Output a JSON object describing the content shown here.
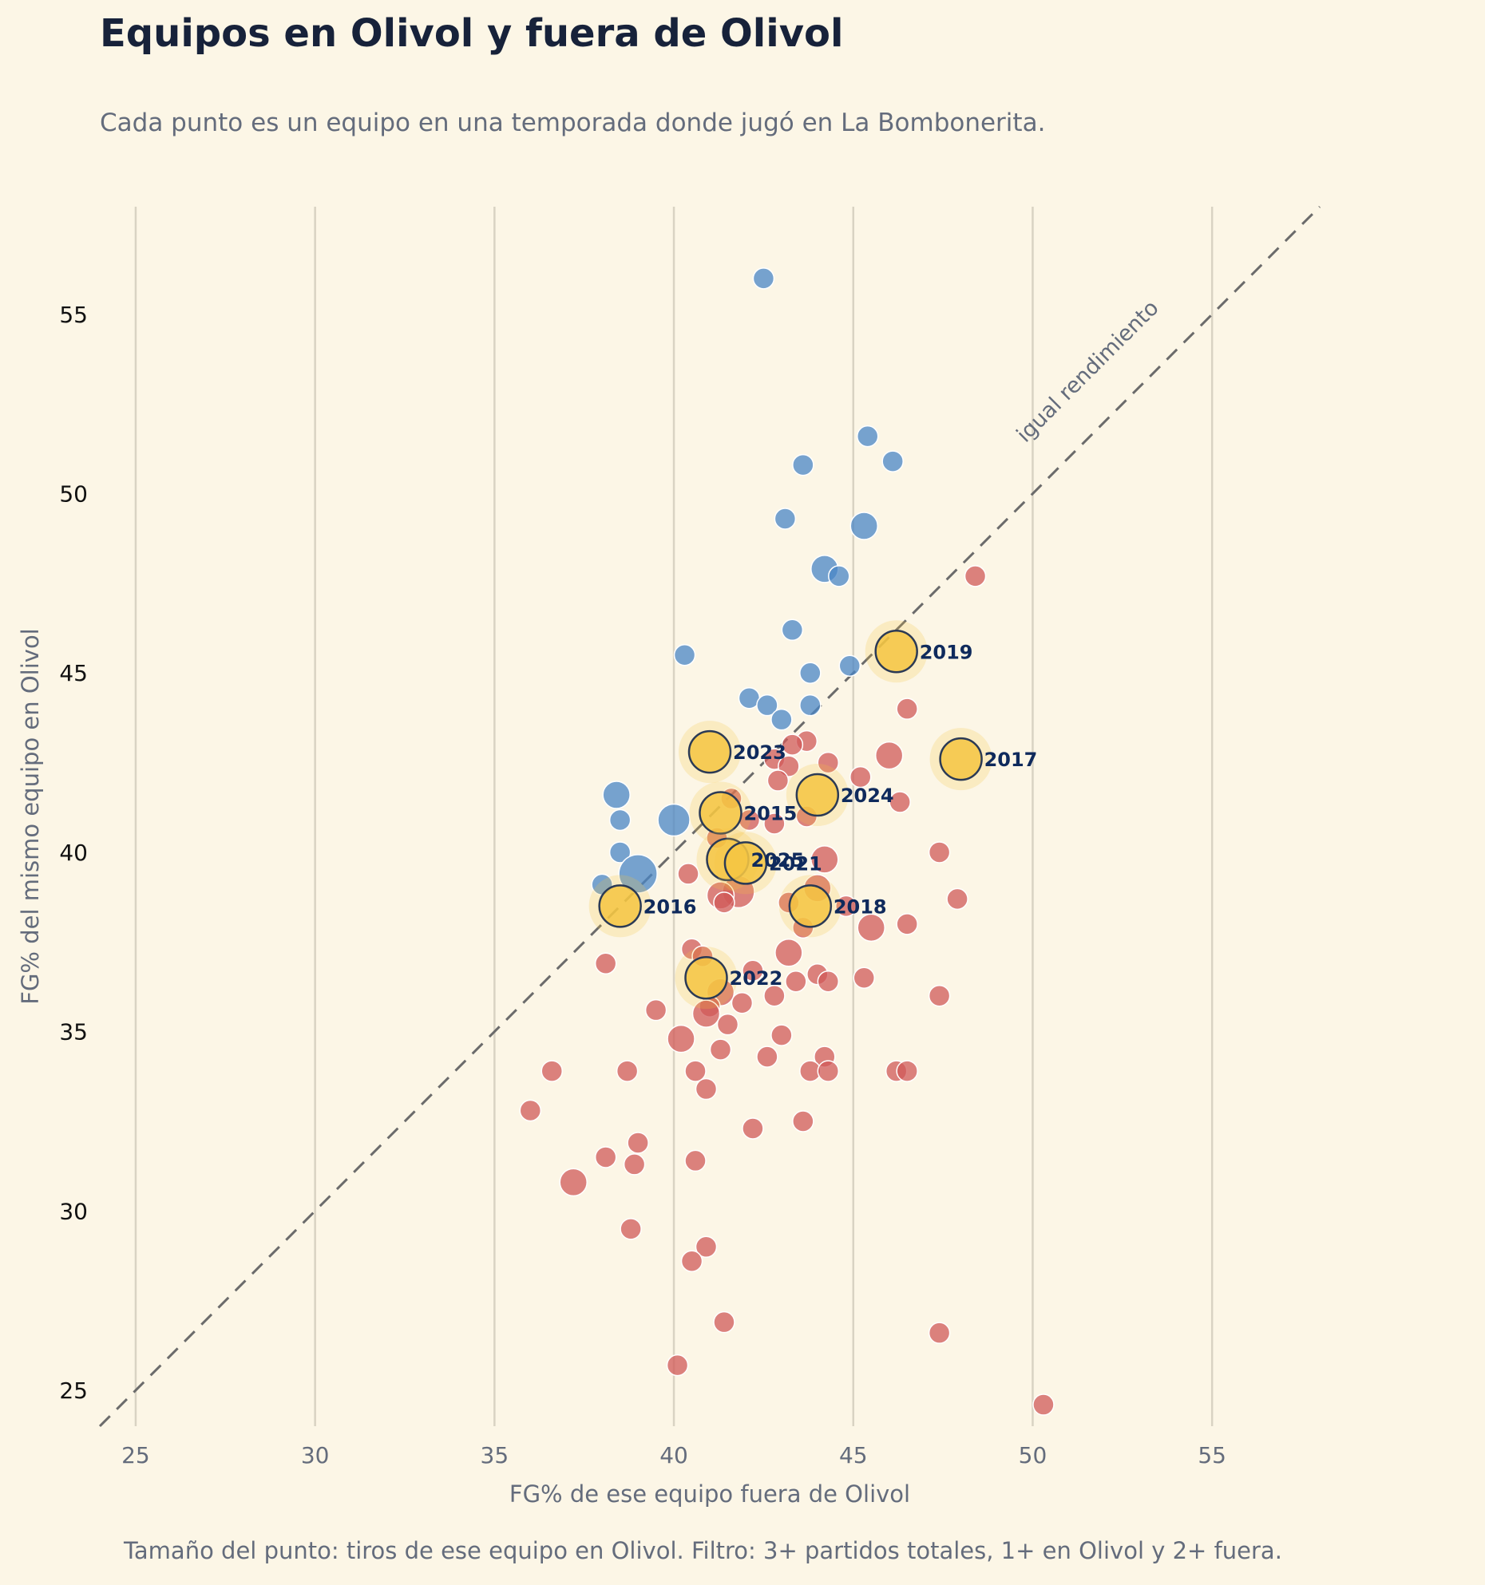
{
  "chart_data": {
    "type": "scatter",
    "title": "Equipos en Olivol y fuera de Olivol",
    "subtitle": "Cada punto es un equipo en una temporada donde jugó en La Bombonerita.",
    "xlabel": "FG% de ese equipo fuera de Olivol",
    "ylabel": "FG% del mismo equipo en Olivol",
    "footnote": "Tamaño del punto: tiros de ese equipo en Olivol. Filtro: 3+ partidos totales, 1+ en Olivol y 2+ fuera.",
    "xlim": [
      24,
      58
    ],
    "ylim": [
      24,
      58
    ],
    "x_ticks": [
      25,
      30,
      35,
      40,
      45,
      50,
      55
    ],
    "y_ticks": [
      25,
      30,
      35,
      40,
      45,
      50,
      55
    ],
    "grid": "vertical",
    "reference_line": {
      "label": "igual rendimiento",
      "from": [
        24,
        24
      ],
      "to": [
        58,
        58
      ]
    },
    "colors": {
      "background": "#fcf6e6",
      "mejor_en_olivol": "#4a86c5",
      "peor_en_olivol": "#d05a58",
      "destacado": "#f5c542",
      "destacado_borde": "#2b3a55",
      "linea_referencia": "#6b6b6b",
      "grid": "#d9d3c3"
    },
    "series": [
      {
        "color": "#4a86c5",
        "points": [
          {
            "x": 42.5,
            "y": 56.0,
            "s": 1
          },
          {
            "x": 45.4,
            "y": 51.6,
            "s": 1
          },
          {
            "x": 43.6,
            "y": 50.8,
            "s": 1
          },
          {
            "x": 46.1,
            "y": 50.9,
            "s": 1
          },
          {
            "x": 43.1,
            "y": 49.3,
            "s": 1
          },
          {
            "x": 45.3,
            "y": 49.1,
            "s": 2
          },
          {
            "x": 44.2,
            "y": 47.9,
            "s": 2
          },
          {
            "x": 44.6,
            "y": 47.7,
            "s": 1
          },
          {
            "x": 43.3,
            "y": 46.2,
            "s": 1
          },
          {
            "x": 40.3,
            "y": 45.5,
            "s": 1
          },
          {
            "x": 44.9,
            "y": 45.2,
            "s": 1
          },
          {
            "x": 43.8,
            "y": 45.0,
            "s": 1
          },
          {
            "x": 42.1,
            "y": 44.3,
            "s": 1
          },
          {
            "x": 42.6,
            "y": 44.1,
            "s": 1
          },
          {
            "x": 43.8,
            "y": 44.1,
            "s": 1
          },
          {
            "x": 43.0,
            "y": 43.7,
            "s": 1
          },
          {
            "x": 38.4,
            "y": 41.6,
            "s": 2
          },
          {
            "x": 38.5,
            "y": 40.9,
            "s": 1
          },
          {
            "x": 40.0,
            "y": 40.9,
            "s": 3
          },
          {
            "x": 38.5,
            "y": 40.0,
            "s": 1
          },
          {
            "x": 39.0,
            "y": 39.4,
            "s": 4
          },
          {
            "x": 38.0,
            "y": 39.1,
            "s": 1
          }
        ]
      },
      {
        "color": "#d05a58",
        "points": [
          {
            "x": 48.4,
            "y": 47.7,
            "s": 1
          },
          {
            "x": 46.5,
            "y": 44.0,
            "s": 1
          },
          {
            "x": 43.7,
            "y": 43.1,
            "s": 1
          },
          {
            "x": 43.3,
            "y": 43.0,
            "s": 1
          },
          {
            "x": 46.0,
            "y": 42.7,
            "s": 2
          },
          {
            "x": 42.8,
            "y": 42.6,
            "s": 1
          },
          {
            "x": 44.3,
            "y": 42.5,
            "s": 1
          },
          {
            "x": 43.2,
            "y": 42.4,
            "s": 1
          },
          {
            "x": 45.2,
            "y": 42.1,
            "s": 1
          },
          {
            "x": 42.9,
            "y": 42.0,
            "s": 1
          },
          {
            "x": 41.6,
            "y": 41.5,
            "s": 1
          },
          {
            "x": 46.3,
            "y": 41.4,
            "s": 1
          },
          {
            "x": 43.7,
            "y": 41.0,
            "s": 1
          },
          {
            "x": 42.1,
            "y": 40.9,
            "s": 1
          },
          {
            "x": 42.8,
            "y": 40.8,
            "s": 1
          },
          {
            "x": 41.2,
            "y": 40.4,
            "s": 1
          },
          {
            "x": 47.4,
            "y": 40.0,
            "s": 1
          },
          {
            "x": 44.2,
            "y": 39.8,
            "s": 2
          },
          {
            "x": 40.4,
            "y": 39.4,
            "s": 1
          },
          {
            "x": 44.0,
            "y": 39.0,
            "s": 2
          },
          {
            "x": 41.8,
            "y": 38.9,
            "s": 3
          },
          {
            "x": 41.3,
            "y": 38.8,
            "s": 2
          },
          {
            "x": 47.9,
            "y": 38.7,
            "s": 1
          },
          {
            "x": 41.4,
            "y": 38.6,
            "s": 1
          },
          {
            "x": 43.2,
            "y": 38.6,
            "s": 1
          },
          {
            "x": 44.8,
            "y": 38.5,
            "s": 1
          },
          {
            "x": 46.5,
            "y": 38.0,
            "s": 1
          },
          {
            "x": 43.6,
            "y": 37.9,
            "s": 1
          },
          {
            "x": 45.5,
            "y": 37.9,
            "s": 2
          },
          {
            "x": 43.2,
            "y": 37.2,
            "s": 2
          },
          {
            "x": 40.5,
            "y": 37.3,
            "s": 1
          },
          {
            "x": 40.8,
            "y": 37.1,
            "s": 1
          },
          {
            "x": 38.1,
            "y": 36.9,
            "s": 1
          },
          {
            "x": 42.2,
            "y": 36.7,
            "s": 1
          },
          {
            "x": 44.0,
            "y": 36.6,
            "s": 1
          },
          {
            "x": 45.3,
            "y": 36.5,
            "s": 1
          },
          {
            "x": 43.4,
            "y": 36.4,
            "s": 1
          },
          {
            "x": 44.3,
            "y": 36.4,
            "s": 1
          },
          {
            "x": 41.3,
            "y": 36.1,
            "s": 2
          },
          {
            "x": 42.8,
            "y": 36.0,
            "s": 1
          },
          {
            "x": 47.4,
            "y": 36.0,
            "s": 1
          },
          {
            "x": 41.9,
            "y": 35.8,
            "s": 1
          },
          {
            "x": 41.0,
            "y": 35.7,
            "s": 1
          },
          {
            "x": 39.5,
            "y": 35.6,
            "s": 1
          },
          {
            "x": 40.9,
            "y": 35.5,
            "s": 2
          },
          {
            "x": 41.5,
            "y": 35.2,
            "s": 1
          },
          {
            "x": 43.0,
            "y": 34.9,
            "s": 1
          },
          {
            "x": 40.2,
            "y": 34.8,
            "s": 2
          },
          {
            "x": 41.3,
            "y": 34.5,
            "s": 1
          },
          {
            "x": 42.6,
            "y": 34.3,
            "s": 1
          },
          {
            "x": 44.2,
            "y": 34.3,
            "s": 1
          },
          {
            "x": 36.6,
            "y": 33.9,
            "s": 1
          },
          {
            "x": 38.7,
            "y": 33.9,
            "s": 1
          },
          {
            "x": 40.6,
            "y": 33.9,
            "s": 1
          },
          {
            "x": 43.8,
            "y": 33.9,
            "s": 1
          },
          {
            "x": 44.3,
            "y": 33.9,
            "s": 1
          },
          {
            "x": 46.2,
            "y": 33.9,
            "s": 1
          },
          {
            "x": 46.5,
            "y": 33.9,
            "s": 1
          },
          {
            "x": 40.9,
            "y": 33.4,
            "s": 1
          },
          {
            "x": 36.0,
            "y": 32.8,
            "s": 1
          },
          {
            "x": 43.6,
            "y": 32.5,
            "s": 1
          },
          {
            "x": 42.2,
            "y": 32.3,
            "s": 1
          },
          {
            "x": 39.0,
            "y": 31.9,
            "s": 1
          },
          {
            "x": 38.1,
            "y": 31.5,
            "s": 1
          },
          {
            "x": 38.9,
            "y": 31.3,
            "s": 1
          },
          {
            "x": 40.6,
            "y": 31.4,
            "s": 1
          },
          {
            "x": 37.2,
            "y": 30.8,
            "s": 2
          },
          {
            "x": 38.8,
            "y": 29.5,
            "s": 1
          },
          {
            "x": 40.9,
            "y": 29.0,
            "s": 1
          },
          {
            "x": 40.5,
            "y": 28.6,
            "s": 1
          },
          {
            "x": 41.4,
            "y": 26.9,
            "s": 1
          },
          {
            "x": 47.4,
            "y": 26.6,
            "s": 1
          },
          {
            "x": 40.1,
            "y": 25.7,
            "s": 1
          },
          {
            "x": 50.3,
            "y": 24.6,
            "s": 1
          }
        ]
      },
      {
        "color": "#f5c542",
        "points": [
          {
            "x": 46.2,
            "y": 45.6,
            "s": 5,
            "label": "2019"
          },
          {
            "x": 48.0,
            "y": 42.6,
            "s": 5,
            "label": "2017"
          },
          {
            "x": 41.0,
            "y": 42.8,
            "s": 5,
            "label": "2023"
          },
          {
            "x": 44.0,
            "y": 41.6,
            "s": 5,
            "label": "2024"
          },
          {
            "x": 41.3,
            "y": 41.1,
            "s": 5,
            "label": "2015"
          },
          {
            "x": 41.5,
            "y": 39.8,
            "s": 5,
            "label": "2025"
          },
          {
            "x": 42.0,
            "y": 39.7,
            "s": 5,
            "label": "2021"
          },
          {
            "x": 38.5,
            "y": 38.5,
            "s": 5,
            "label": "2016"
          },
          {
            "x": 43.8,
            "y": 38.5,
            "s": 5,
            "label": "2018"
          },
          {
            "x": 40.9,
            "y": 36.5,
            "s": 5,
            "label": "2022"
          }
        ]
      }
    ]
  }
}
